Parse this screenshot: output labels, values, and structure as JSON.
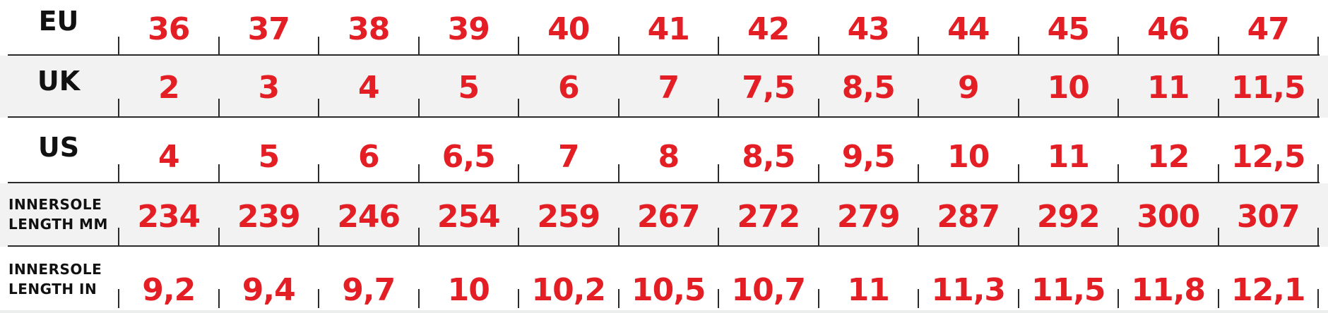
{
  "size_chart": {
    "accent_color": "#e31e24",
    "rows": [
      {
        "label": "EU",
        "values": [
          "36",
          "37",
          "38",
          "39",
          "40",
          "41",
          "42",
          "43",
          "44",
          "45",
          "46",
          "47"
        ]
      },
      {
        "label": "UK",
        "values": [
          "2",
          "3",
          "4",
          "5",
          "6",
          "7",
          "7,5",
          "8,5",
          "9",
          "10",
          "11",
          "11,5"
        ]
      },
      {
        "label": "US",
        "values": [
          "4",
          "5",
          "6",
          "6,5",
          "7",
          "8",
          "8,5",
          "9,5",
          "10",
          "11",
          "12",
          "12,5"
        ]
      },
      {
        "label_line1": "INNERSOLE",
        "label_line2": "LENGTH MM",
        "values": [
          "234",
          "239",
          "246",
          "254",
          "259",
          "267",
          "272",
          "279",
          "287",
          "292",
          "300",
          "307"
        ]
      },
      {
        "label_line1": "INNERSOLE",
        "label_line2": "LENGTH IN",
        "values": [
          "9,2",
          "9,4",
          "9,7",
          "10",
          "10,2",
          "10,5",
          "10,7",
          "11",
          "11,3",
          "11,5",
          "11,8",
          "12,1"
        ]
      }
    ]
  }
}
